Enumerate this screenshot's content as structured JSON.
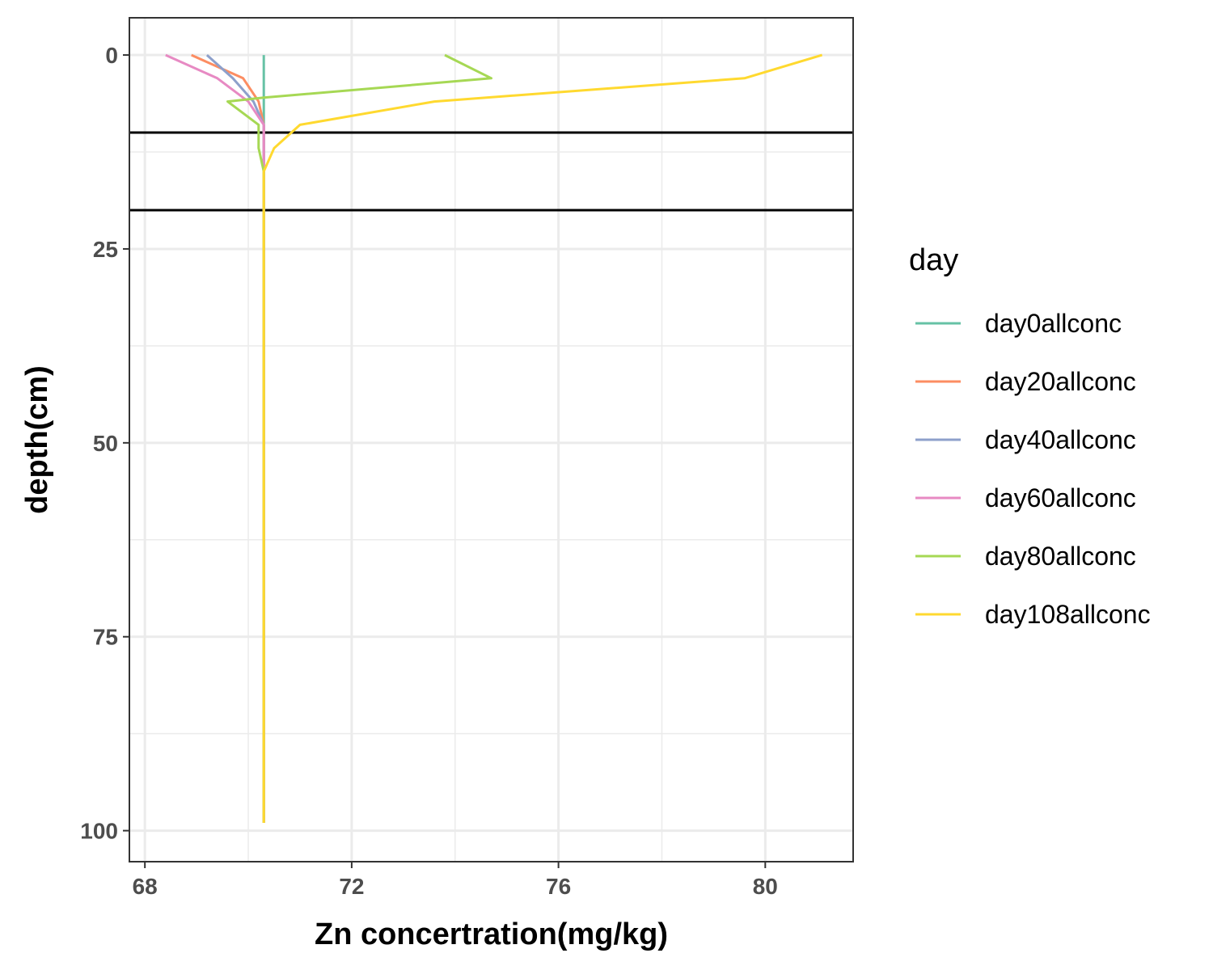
{
  "chart_data": {
    "type": "line",
    "title": "",
    "xlabel": "Zn concertration(mg/kg)",
    "ylabel": "depth(cm)",
    "xlim": [
      67.7,
      81.7
    ],
    "ylim": [
      -4.8,
      104
    ],
    "y_reversed": true,
    "xticks": [
      68,
      72,
      76,
      80
    ],
    "yticks": [
      0,
      25,
      50,
      75,
      100
    ],
    "grid": true,
    "hlines": [
      10,
      20
    ],
    "legend": {
      "title": "day",
      "position": "right"
    },
    "series": [
      {
        "name": "day0allconc",
        "color": "#66c2a5",
        "x": [
          70.3,
          70.3,
          70.3
        ],
        "y": [
          0,
          50,
          99
        ]
      },
      {
        "name": "day20allconc",
        "color": "#fc8d62",
        "x": [
          68.9,
          69.9,
          70.2,
          70.3,
          70.3,
          70.3,
          70.3
        ],
        "y": [
          0,
          3,
          6,
          9,
          12,
          15,
          99
        ]
      },
      {
        "name": "day40allconc",
        "color": "#8da0cb",
        "x": [
          69.2,
          69.7,
          70.1,
          70.3,
          70.3,
          70.3,
          70.3
        ],
        "y": [
          0,
          3,
          6,
          9,
          12,
          15,
          99
        ]
      },
      {
        "name": "day60allconc",
        "color": "#e78ac3",
        "x": [
          68.4,
          69.4,
          70.0,
          70.3,
          70.3,
          70.3,
          70.3
        ],
        "y": [
          0,
          3,
          6,
          9,
          12,
          15,
          99
        ]
      },
      {
        "name": "day80allconc",
        "color": "#a6d854",
        "x": [
          73.8,
          74.7,
          70.3,
          69.6,
          70.2,
          70.2,
          70.3,
          70.3
        ],
        "y": [
          0,
          3,
          5.5,
          6,
          9,
          12,
          15,
          99
        ]
      },
      {
        "name": "day108allconc",
        "color": "#ffd92f",
        "x": [
          81.1,
          79.6,
          73.6,
          71.0,
          70.5,
          70.3,
          70.3
        ],
        "y": [
          0,
          3,
          6,
          9,
          12,
          15,
          99
        ]
      }
    ]
  }
}
